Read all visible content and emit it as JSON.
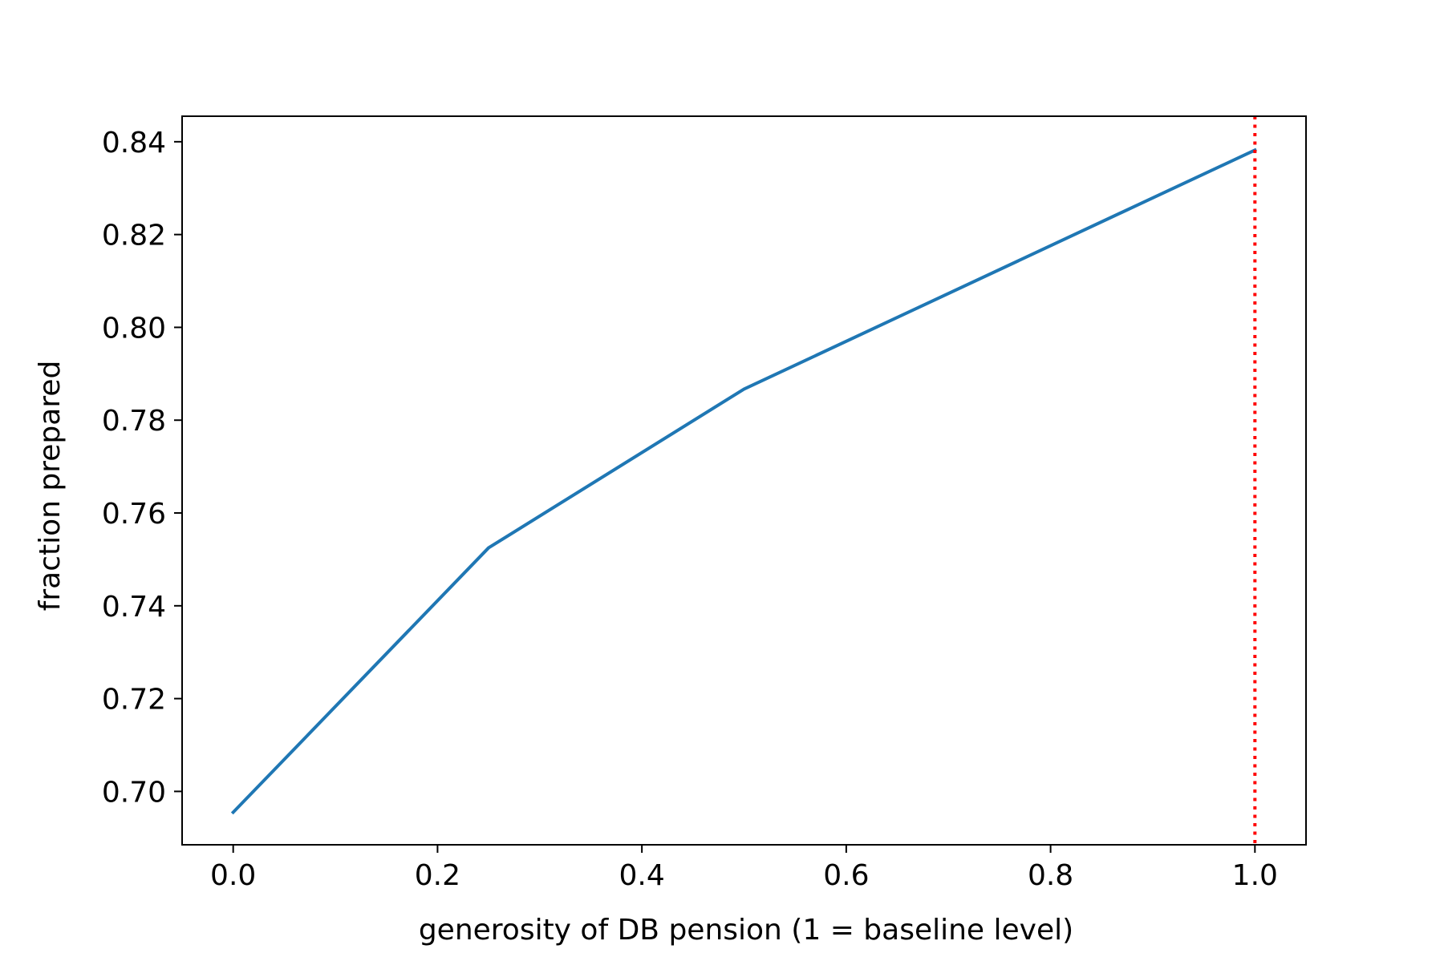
{
  "chart_data": {
    "type": "line",
    "title": "",
    "xlabel": "generosity of DB pension (1 = baseline level)",
    "ylabel": "fraction prepared",
    "xlim": [
      -0.05,
      1.05
    ],
    "ylim": [
      0.6885,
      0.8455
    ],
    "x_ticks": [
      0.0,
      0.2,
      0.4,
      0.6,
      0.8,
      1.0
    ],
    "x_tick_labels": [
      "0.0",
      "0.2",
      "0.4",
      "0.6",
      "0.8",
      "1.0"
    ],
    "y_ticks": [
      0.7,
      0.72,
      0.74,
      0.76,
      0.78,
      0.8,
      0.82,
      0.84
    ],
    "y_tick_labels": [
      "0.70",
      "0.72",
      "0.74",
      "0.76",
      "0.78",
      "0.80",
      "0.82",
      "0.84"
    ],
    "grid": false,
    "legend": "none",
    "series": [
      {
        "x": [
          0.0,
          0.25,
          0.5,
          1.0
        ],
        "y": [
          0.6955,
          0.7525,
          0.7867,
          0.8382
        ],
        "color": "#1f77b4",
        "style": "solid"
      }
    ],
    "reference_lines": [
      {
        "orientation": "vertical",
        "x": 1.0,
        "color": "#ff0000",
        "style": "dotted"
      }
    ]
  }
}
